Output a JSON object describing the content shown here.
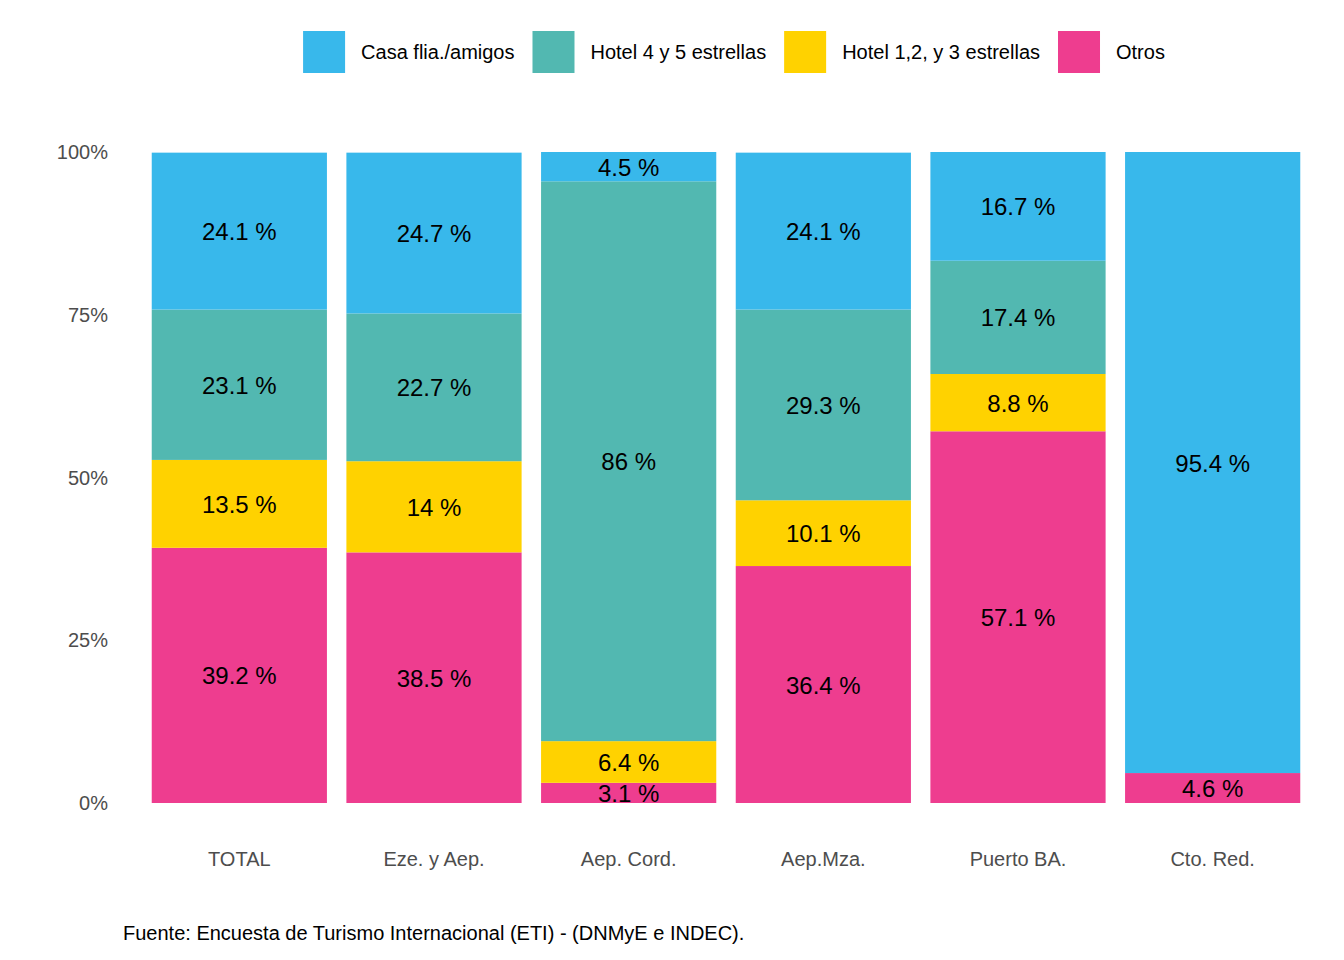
{
  "chart_data": {
    "type": "bar",
    "stacked": true,
    "data_labels": true,
    "grid": false,
    "legend": "top",
    "categories": [
      "TOTAL",
      "Eze. y Aep.",
      "Aep. Cord.",
      "Aep.Mza.",
      "Puerto BA.",
      "Cto. Red."
    ],
    "series": [
      {
        "name": "Casa flia./amigos",
        "color": "#38b8eb",
        "values": [
          24.1,
          24.7,
          4.5,
          24.1,
          16.7,
          95.4
        ],
        "value_labels": [
          "24.1 %",
          "24.7 %",
          "4.5 %",
          "24.1 %",
          "16.7 %",
          "95.4 %"
        ]
      },
      {
        "name": "Hotel 4 y 5 estrellas",
        "color": "#52b8b1",
        "values": [
          23.1,
          22.7,
          86,
          29.3,
          17.4,
          null
        ],
        "value_labels": [
          "23.1 %",
          "22.7 %",
          "86 %",
          "29.3 %",
          "17.4 %",
          null
        ]
      },
      {
        "name": "Hotel 1,2, y 3 estrellas",
        "color": "#ffd200",
        "values": [
          13.5,
          14,
          6.4,
          10.1,
          8.8,
          null
        ],
        "value_labels": [
          "13.5 %",
          "14 %",
          "6.4 %",
          "10.1 %",
          "8.8 %",
          null
        ]
      },
      {
        "name": "Otros",
        "color": "#ee3d8f",
        "values": [
          39.2,
          38.5,
          3.1,
          36.4,
          57.1,
          4.6
        ],
        "value_labels": [
          "39.2 %",
          "38.5 %",
          "3.1 %",
          "36.4 %",
          "57.1 %",
          "4.6 %"
        ]
      }
    ],
    "ylim": [
      0,
      100
    ],
    "yticks": [
      {
        "value": 0,
        "label": "0%"
      },
      {
        "value": 25,
        "label": "25%"
      },
      {
        "value": 50,
        "label": "50%"
      },
      {
        "value": 75,
        "label": "75%"
      },
      {
        "value": 100,
        "label": "100%"
      }
    ],
    "annotations": [
      "Fuente: Encuesta de Turismo Internacional (ETI) - (DNMyE e INDEC)."
    ]
  }
}
